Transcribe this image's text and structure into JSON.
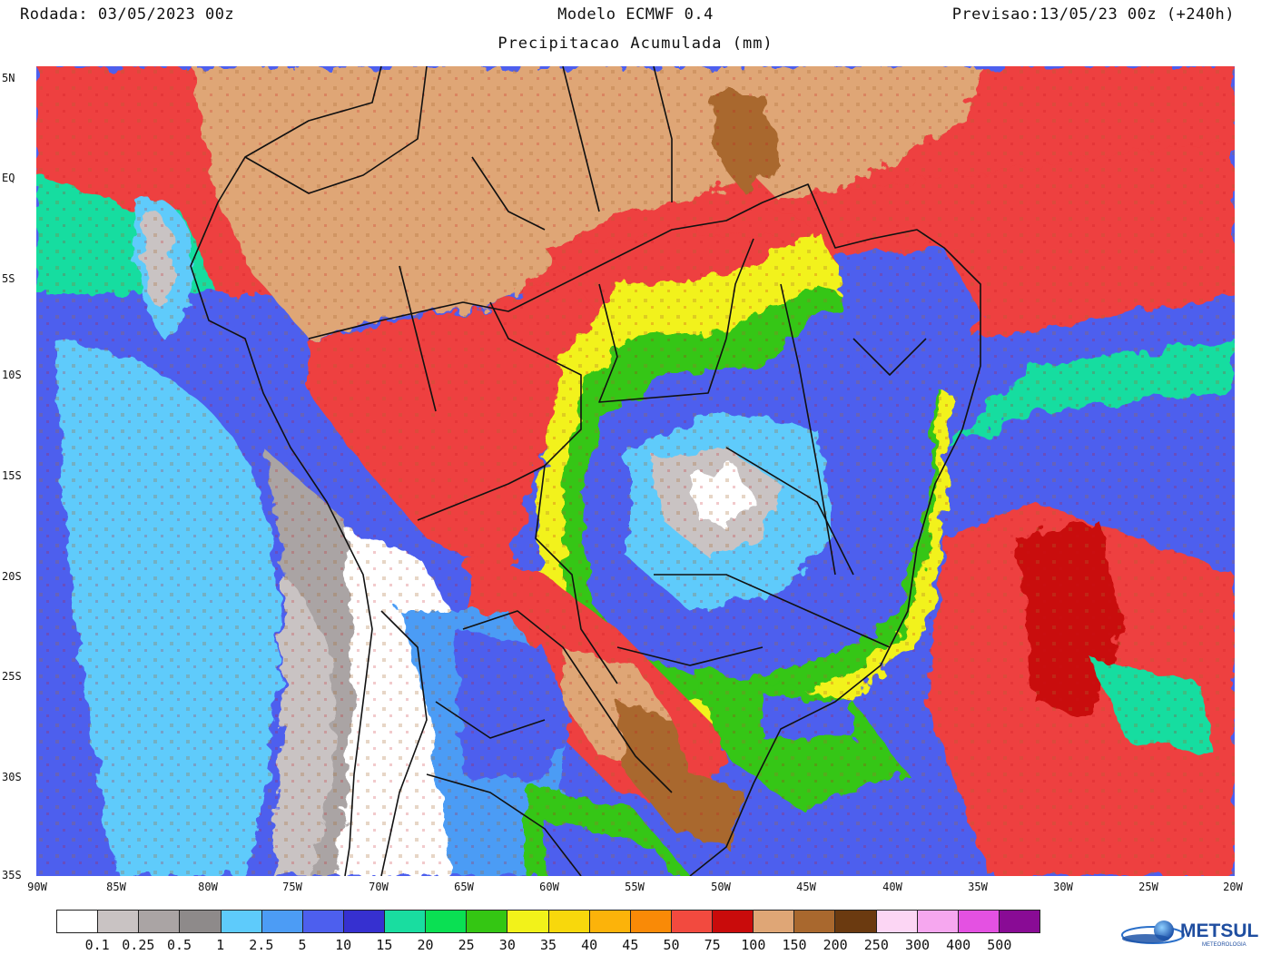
{
  "header": {
    "run": "Rodada: 03/05/2023 00z",
    "model": "Modelo ECMWF 0.4",
    "forecast": "Previsao:13/05/23 00z (+240h)",
    "product": "Precipitacao Acumulada (mm)"
  },
  "map": {
    "region": "South America",
    "lon_range": [
      -90,
      -20
    ],
    "lat_range": [
      -35,
      6.5
    ],
    "colors": {
      "ocean_low": "#5f5ff0",
      "dry_land": "#d9a877",
      "brown": "#a86a30",
      "heavy_red": "#ee3f3f",
      "border": "#111111"
    }
  },
  "lat_ticks": [
    "5N",
    "EQ",
    "5S",
    "10S",
    "15S",
    "20S",
    "25S",
    "30S",
    "35S"
  ],
  "lon_ticks": [
    "90W",
    "85W",
    "80W",
    "75W",
    "70W",
    "65W",
    "60W",
    "55W",
    "50W",
    "45W",
    "40W",
    "35W",
    "30W",
    "25W",
    "20W"
  ],
  "legend": {
    "colors": [
      "#ffffff",
      "#c9c3c3",
      "#aaa4a4",
      "#8e8a8a",
      "#5ecbfb",
      "#4c9cf5",
      "#4d5fee",
      "#3630d0",
      "#19dda0",
      "#0ae053",
      "#34c613",
      "#f2f21a",
      "#f8d80c",
      "#fcb30a",
      "#f98a07",
      "#f24a3f",
      "#c90b0b",
      "#dfa676",
      "#a9682e",
      "#6b3a10",
      "#fcd6f4",
      "#f6a7ef",
      "#e451e2",
      "#890b95"
    ],
    "labels": [
      "0.1",
      "0.25",
      "0.5",
      "1",
      "2.5",
      "5",
      "10",
      "15",
      "20",
      "25",
      "30",
      "35",
      "40",
      "45",
      "50",
      "75",
      "100",
      "150",
      "200",
      "250",
      "300",
      "400",
      "500"
    ]
  },
  "logo": {
    "text": "METSUL",
    "subtext": "METEOROLOGIA"
  }
}
